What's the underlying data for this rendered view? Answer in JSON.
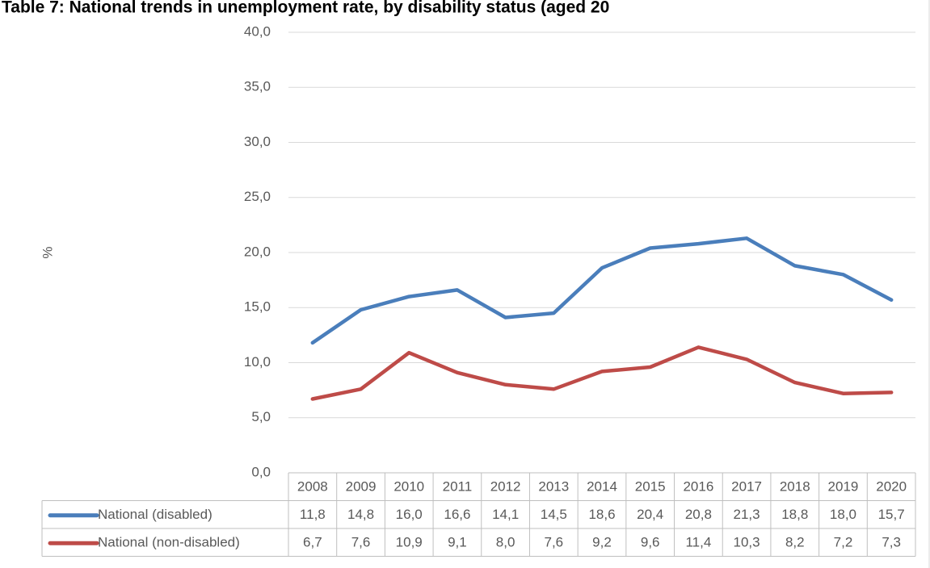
{
  "chart_data": {
    "type": "line",
    "title": "Table 7: National trends in unemployment rate, by disability status (aged 20",
    "y_label": "%",
    "categories": [
      "2008",
      "2009",
      "2010",
      "2011",
      "2012",
      "2013",
      "2014",
      "2015",
      "2016",
      "2017",
      "2018",
      "2019",
      "2020"
    ],
    "series": [
      {
        "name": "National (disabled)",
        "color": "#4a7ebb",
        "values": [
          11.8,
          14.8,
          16.0,
          16.6,
          14.1,
          14.5,
          18.6,
          20.4,
          20.8,
          21.3,
          18.8,
          18.0,
          15.7
        ],
        "value_labels": [
          "11,8",
          "14,8",
          "16,0",
          "16,6",
          "14,1",
          "14,5",
          "18,6",
          "20,4",
          "20,8",
          "21,3",
          "18,8",
          "18,0",
          "15,7"
        ]
      },
      {
        "name": "National (non-disabled)",
        "color": "#be4b48",
        "values": [
          6.7,
          7.6,
          10.9,
          9.1,
          8.0,
          7.6,
          9.2,
          9.6,
          11.4,
          10.3,
          8.2,
          7.2,
          7.3
        ],
        "value_labels": [
          "6,7",
          "7,6",
          "10,9",
          "9,1",
          "8,0",
          "7,6",
          "9,2",
          "9,6",
          "11,4",
          "10,3",
          "8,2",
          "7,2",
          "7,3"
        ]
      }
    ],
    "ylim": [
      0,
      40
    ],
    "yticks": [
      {
        "value": 0,
        "label": "0,0"
      },
      {
        "value": 5,
        "label": "5,0"
      },
      {
        "value": 10,
        "label": "10,0"
      },
      {
        "value": 15,
        "label": "15,0"
      },
      {
        "value": 20,
        "label": "20,0"
      },
      {
        "value": 25,
        "label": "25,0"
      },
      {
        "value": 30,
        "label": "30,0"
      },
      {
        "value": 35,
        "label": "35,0"
      },
      {
        "value": 40,
        "label": "40,0"
      }
    ],
    "grid": true
  }
}
